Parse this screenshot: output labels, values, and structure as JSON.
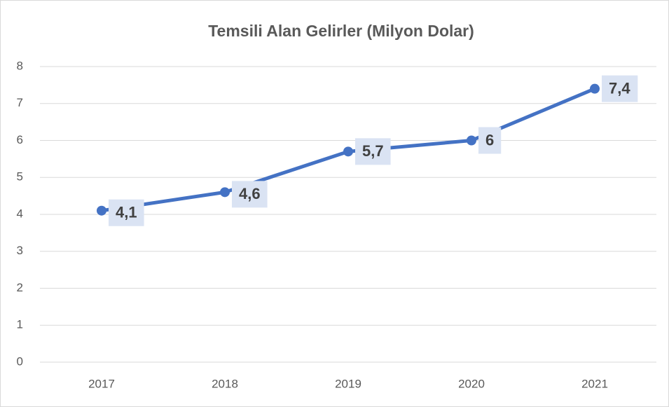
{
  "chart_data": {
    "type": "line",
    "title": "Temsili Alan Gelirler (Milyon Dolar)",
    "categories": [
      "2017",
      "2018",
      "2019",
      "2020",
      "2021"
    ],
    "values": [
      4.1,
      4.6,
      5.7,
      6,
      7.4
    ],
    "value_labels": [
      "4,1",
      "4,6",
      "5,7",
      "6",
      "7,4"
    ],
    "color": "#4472c4",
    "ylim": [
      0,
      8
    ],
    "yticks": [
      0,
      1,
      2,
      3,
      4,
      5,
      6,
      7,
      8
    ],
    "grid": true
  }
}
